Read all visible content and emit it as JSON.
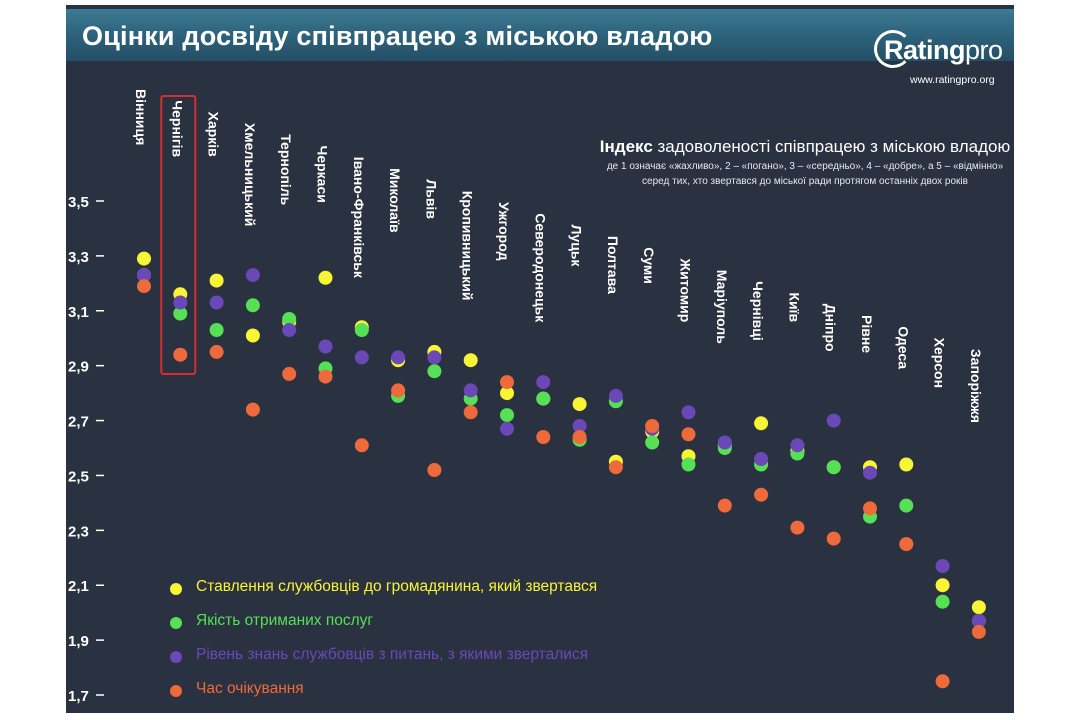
{
  "title": "Оцінки досвіду співпрацею з міською владою",
  "logo": {
    "name_main": "Rating",
    "name_suffix": "pro",
    "url": "www.ratingpro.org"
  },
  "note": {
    "heading_bold": "Індекс",
    "heading_rest": " задоволеності співпрацею з міською владою",
    "line1": "де 1 означає «жахливо», 2 – «погано», 3 – «середньо», 4 – «добре», а 5 – «відмінно»",
    "line2": "серед тих, хто звертався до міської ради протягом останніх двох років"
  },
  "colors": {
    "background": "#2a3140",
    "title_bar": "#2c6079",
    "highlight_box": "#d32f2f",
    "series": [
      "#f7f534",
      "#55e055",
      "#6a48b8",
      "#ef6a3a"
    ]
  },
  "chart_data": {
    "type": "scatter",
    "title": "Індекс задоволеності співпрацею з міською владою",
    "categories": [
      "Вінниця",
      "Чернігів",
      "Харків",
      "Хмельницький",
      "Тернопіль",
      "Черкаси",
      "Івано-Франківськ",
      "Миколаїв",
      "Львів",
      "Кропивницький",
      "Ужгород",
      "Северодонецьк",
      "Луцьк",
      "Полтава",
      "Суми",
      "Житомир",
      "Маріуполь",
      "Чернівці",
      "Київ",
      "Дніпро",
      "Рівне",
      "Одеса",
      "Херсон",
      "Запоріжжя"
    ],
    "highlighted_category": "Чернігів",
    "series": [
      {
        "name": "Ставлення службовців до громадянина, який звертався",
        "color": "#f7f534",
        "values": [
          3.29,
          3.16,
          3.21,
          3.01,
          3.06,
          3.22,
          3.04,
          2.92,
          2.95,
          2.92,
          2.8,
          2.78,
          2.76,
          2.55,
          2.66,
          2.57,
          2.61,
          2.69,
          2.59,
          2.53,
          2.53,
          2.54,
          2.1,
          2.02
        ]
      },
      {
        "name": "Якість отриманих послуг",
        "color": "#55e055",
        "values": [
          3.23,
          3.09,
          3.03,
          3.12,
          3.07,
          2.89,
          3.03,
          2.79,
          2.88,
          2.78,
          2.72,
          2.78,
          2.63,
          2.77,
          2.62,
          2.54,
          2.6,
          2.54,
          2.58,
          2.53,
          2.35,
          2.39,
          2.04,
          1.97
        ]
      },
      {
        "name": "Рівень знань службовців з питань, з якими зверталися",
        "color": "#6a48b8",
        "values": [
          3.23,
          3.13,
          3.13,
          3.23,
          3.03,
          2.97,
          2.93,
          2.93,
          2.93,
          2.81,
          2.67,
          2.84,
          2.68,
          2.79,
          2.67,
          2.73,
          2.62,
          2.56,
          2.61,
          2.7,
          2.51,
          2.25,
          2.17,
          1.97
        ]
      },
      {
        "name": "Час очікування",
        "color": "#ef6a3a",
        "values": [
          3.19,
          2.94,
          2.95,
          2.74,
          2.87,
          2.86,
          2.61,
          2.81,
          2.52,
          2.73,
          2.84,
          2.64,
          2.64,
          2.53,
          2.68,
          2.65,
          2.39,
          2.43,
          2.31,
          2.27,
          2.38,
          2.25,
          1.75,
          1.93
        ]
      }
    ],
    "ylim": [
      1.7,
      3.5
    ],
    "yticks": [
      "3,5",
      "3,3",
      "3,1",
      "2,9",
      "2,7",
      "2,5",
      "2,3",
      "2,1",
      "1,9",
      "1,7"
    ],
    "ytick_values": [
      3.5,
      3.3,
      3.1,
      2.9,
      2.7,
      2.5,
      2.3,
      2.1,
      1.9,
      1.7
    ],
    "legend_position": "bottom-left",
    "grid": false
  }
}
